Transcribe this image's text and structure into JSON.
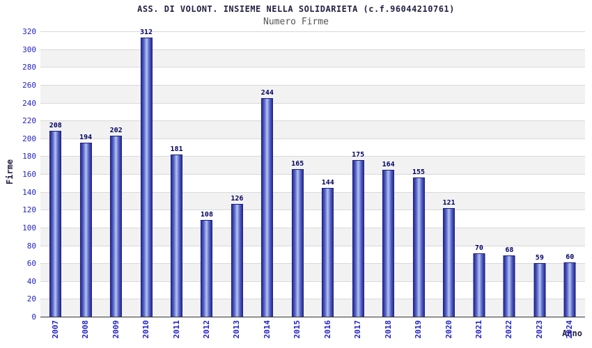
{
  "chart_data": {
    "type": "bar",
    "title": "ASS. DI VOLONT. INSIEME NELLA SOLIDARIETA (c.f.96044210761)",
    "subtitle": "Numero Firme",
    "xlabel": "Anno",
    "ylabel": "Firme",
    "categories": [
      "2007",
      "2008",
      "2009",
      "2010",
      "2011",
      "2012",
      "2013",
      "2014",
      "2015",
      "2016",
      "2017",
      "2018",
      "2019",
      "2020",
      "2021",
      "2022",
      "2023",
      "2024"
    ],
    "values": [
      208,
      194,
      202,
      312,
      181,
      108,
      126,
      244,
      165,
      144,
      175,
      164,
      155,
      121,
      70,
      68,
      59,
      60
    ],
    "ylim": [
      0,
      320
    ],
    "ytick_step": 20,
    "grid": "horizontal",
    "legend": "none",
    "colors": {
      "bar_dark": "#28289a",
      "bar_light": "#b9c3ee",
      "tick_label": "#2222cc",
      "value_label": "#000066",
      "title": "#222244",
      "subtitle": "#555555",
      "band": "#f2f2f2",
      "gridline": "#d9d9d9"
    }
  }
}
